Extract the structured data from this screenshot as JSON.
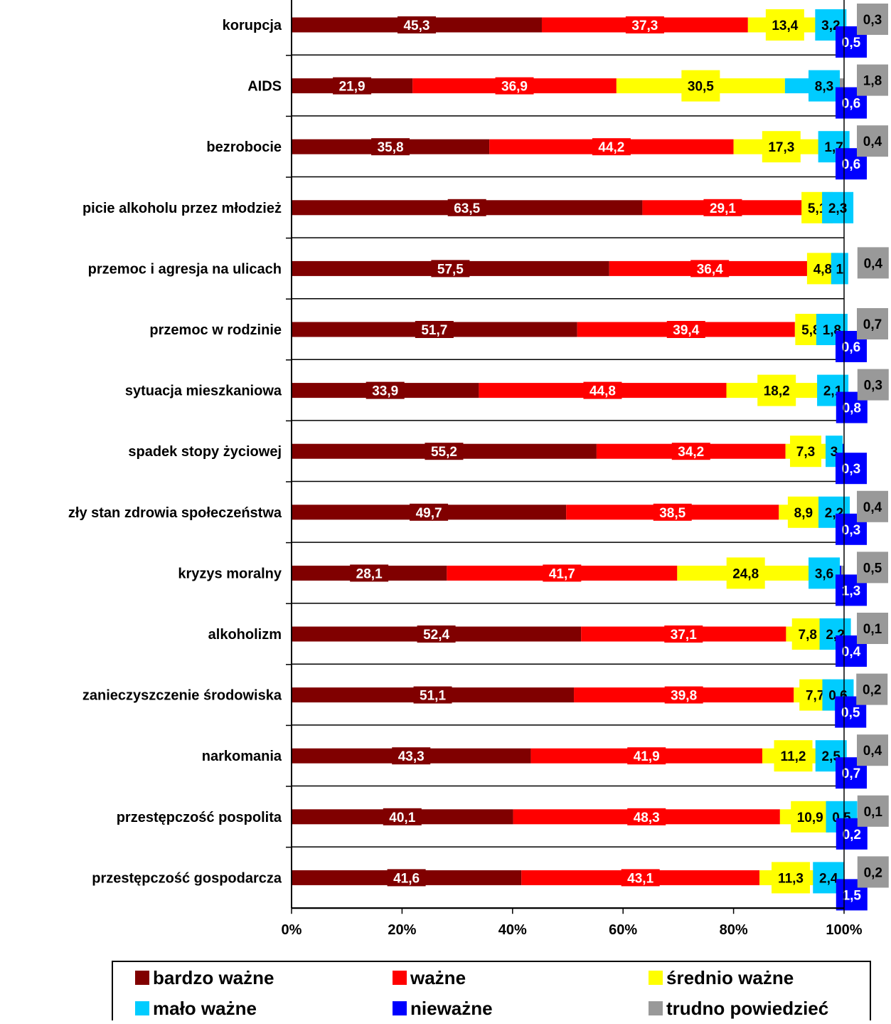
{
  "chart_data": {
    "type": "bar",
    "orientation": "horizontal",
    "stacked": "percent",
    "categories": [
      "korupcja",
      "AIDS",
      "bezrobocie",
      "picie alkoholu przez młodzież",
      "przemoc i agresja na ulicach",
      "przemoc w rodzinie",
      "sytuacja mieszkaniowa",
      "spadek stopy życiowej",
      "zły stan zdrowia społeczeństwa",
      "kryzys moralny",
      "alkoholizm",
      "zanieczyszczenie środowiska",
      "narkomania",
      "przestępczość pospolita",
      "przestępczość gospodarcza"
    ],
    "series": [
      {
        "name": "bardzo ważne",
        "color": "#800000",
        "label_color": "#ffffff",
        "values": [
          45.3,
          21.9,
          35.8,
          63.5,
          57.5,
          51.7,
          33.9,
          55.2,
          49.7,
          28.1,
          52.4,
          51.1,
          43.3,
          40.1,
          41.6
        ],
        "labels": [
          "45,3",
          "21,9",
          "35,8",
          "63,5",
          "57,5",
          "51,7",
          "33,9",
          "55,2",
          "49,7",
          "28,1",
          "52,4",
          "51,1",
          "43,3",
          "40,1",
          "41,6"
        ]
      },
      {
        "name": "ważne",
        "color": "#ff0000",
        "label_color": "#ffffff",
        "values": [
          37.3,
          36.9,
          44.2,
          29.1,
          36.4,
          39.4,
          44.8,
          34.2,
          38.5,
          41.7,
          37.1,
          39.8,
          41.9,
          48.3,
          43.1
        ],
        "labels": [
          "37,3",
          "36,9",
          "44,2",
          "29,1",
          "36,4",
          "39,4",
          "44,8",
          "34,2",
          "38,5",
          "41,7",
          "37,1",
          "39,8",
          "41,9",
          "48,3",
          "43,1"
        ]
      },
      {
        "name": "średnio ważne",
        "color": "#ffff00",
        "label_color": "#000000",
        "values": [
          13.4,
          30.5,
          17.3,
          5.1,
          4.8,
          5.8,
          18.2,
          7.3,
          8.9,
          24.8,
          7.8,
          7.7,
          11.2,
          10.9,
          11.3
        ],
        "labels": [
          "13,4",
          "30,5",
          "17,3",
          "5,1",
          "4,8",
          "5,8",
          "18,2",
          "7,3",
          "8,9",
          "24,8",
          "7,8",
          "7,7",
          "11,2",
          "10,9",
          "11,3"
        ]
      },
      {
        "name": "mało ważne",
        "color": "#00ccff",
        "label_color": "#000000",
        "values": [
          3.2,
          8.3,
          1.7,
          2.3,
          1,
          1.8,
          2.1,
          3,
          2.2,
          3.6,
          2.2,
          0.6,
          2.5,
          0.5,
          2.4
        ],
        "labels": [
          "3,2",
          "8,3",
          "1,7",
          "2,3",
          "1",
          "1,8",
          "2,1",
          "3",
          "2,2",
          "3,6",
          "2,2",
          "0,6",
          "2,5",
          "0,5",
          "2,4"
        ]
      },
      {
        "name": "nieważne",
        "color": "#0000ff",
        "label_color": "#ffffff",
        "values": [
          0.5,
          0.6,
          0.6,
          null,
          null,
          0.6,
          0.8,
          0.3,
          0.3,
          1.3,
          0.4,
          0.5,
          0.7,
          0.2,
          1.5
        ],
        "labels": [
          "0,5",
          "0,6",
          "0,6",
          "",
          "",
          "0,6",
          "0,8",
          "0,3",
          "0,3",
          "1,3",
          "0,4",
          "0,5",
          "0,7",
          "0,2",
          "1,5"
        ]
      },
      {
        "name": "trudno powiedzieć",
        "color": "#999999",
        "label_color": "#000000",
        "values": [
          0.3,
          1.8,
          0.4,
          null,
          0.4,
          0.7,
          0.3,
          null,
          0.4,
          0.5,
          0.1,
          0.2,
          0.4,
          0.1,
          0.2
        ],
        "labels": [
          "0,3",
          "1,8",
          "0,4",
          "",
          "0,4",
          "0,7",
          "0,3",
          "",
          "0,4",
          "0,5",
          "0,1",
          "0,2",
          "0,4",
          "0,1",
          "0,2"
        ]
      }
    ],
    "xaxis": {
      "ticks": [
        "0%",
        "20%",
        "40%",
        "60%",
        "80%",
        "100%"
      ],
      "range": [
        0,
        100
      ]
    },
    "legend": {
      "position": "bottom",
      "columns": 3
    },
    "grid": false
  }
}
